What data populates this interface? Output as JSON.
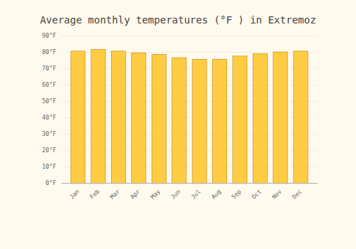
{
  "chart_data": {
    "type": "bar",
    "title": "Average monthly temperatures (°F ) in Extremoz",
    "categories": [
      "Jan",
      "Feb",
      "Mar",
      "Apr",
      "May",
      "Jun",
      "Jul",
      "Aug",
      "Sep",
      "Oct",
      "Nov",
      "Dec"
    ],
    "values": [
      80.5,
      81.5,
      80.5,
      79.5,
      78.5,
      76.5,
      75.5,
      75.5,
      77.5,
      79.0,
      80.0,
      80.5
    ],
    "color": "#FFCC44",
    "ylim": [
      0,
      90
    ],
    "yticks": [
      {
        "value": 0,
        "label": "0°F"
      },
      {
        "value": 10,
        "label": "10°F"
      },
      {
        "value": 20,
        "label": "20°F"
      },
      {
        "value": 30,
        "label": "30°F"
      },
      {
        "value": 40,
        "label": "40°F"
      },
      {
        "value": 50,
        "label": "50°F"
      },
      {
        "value": 60,
        "label": "60°F"
      },
      {
        "value": 70,
        "label": "70°F"
      },
      {
        "value": 80,
        "label": "80°F"
      },
      {
        "value": 90,
        "label": "90°F"
      }
    ],
    "grid": true
  }
}
